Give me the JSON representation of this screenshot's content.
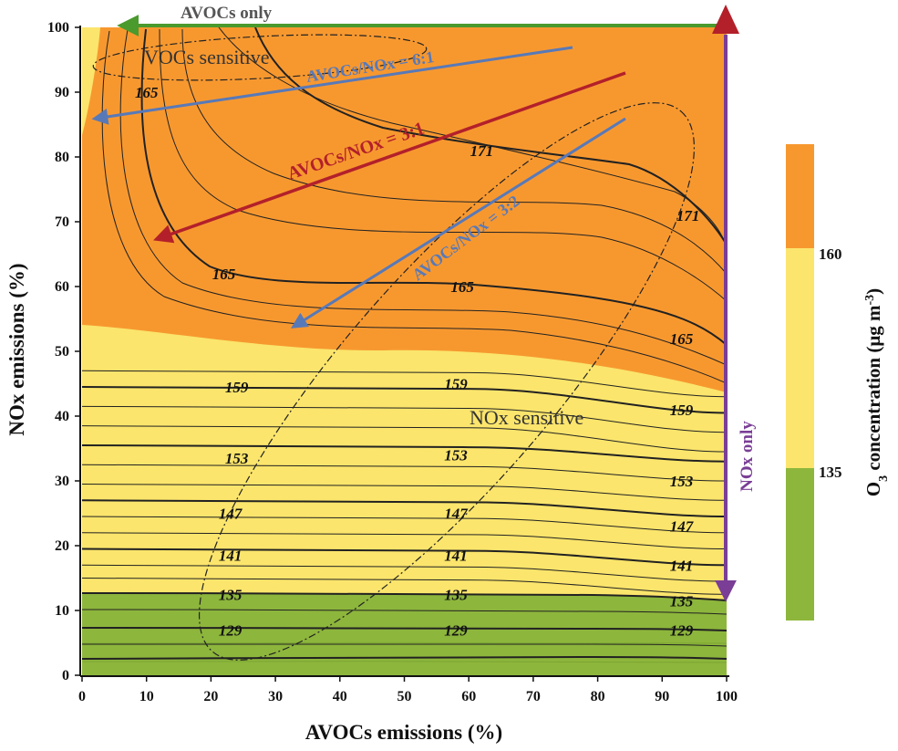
{
  "chart_data": {
    "type": "contour",
    "xlabel": "AVOCs emissions (%)",
    "ylabel": "NOx emissions (%)",
    "xlim": [
      0,
      100
    ],
    "ylim": [
      0,
      100
    ],
    "xticks": [
      "0",
      "10",
      "20",
      "30",
      "40",
      "50",
      "60",
      "70",
      "80",
      "90",
      "100"
    ],
    "yticks": [
      "0",
      "10",
      "20",
      "30",
      "40",
      "50",
      "60",
      "70",
      "80",
      "90",
      "100"
    ],
    "colorbar": {
      "title": "O3 concentration (μg m-3)",
      "ticks": [
        "160",
        "135"
      ],
      "bands": [
        {
          "from": 160,
          "to": 175,
          "color": "#F7982F"
        },
        {
          "from": 135,
          "to": 160,
          "color": "#FBE56C"
        },
        {
          "from": 120,
          "to": 135,
          "color": "#8DB63C"
        }
      ]
    },
    "contour_labels": [
      {
        "value": "171",
        "x": 62,
        "y": 81
      },
      {
        "value": "171",
        "x": 94,
        "y": 71
      },
      {
        "value": "165",
        "x": 10,
        "y": 90
      },
      {
        "value": "165",
        "x": 22,
        "y": 62
      },
      {
        "value": "165",
        "x": 59,
        "y": 60
      },
      {
        "value": "165",
        "x": 93,
        "y": 52
      },
      {
        "value": "159",
        "x": 24,
        "y": 44.5
      },
      {
        "value": "159",
        "x": 58,
        "y": 45
      },
      {
        "value": "159",
        "x": 93,
        "y": 41
      },
      {
        "value": "153",
        "x": 24,
        "y": 33.5
      },
      {
        "value": "153",
        "x": 58,
        "y": 34
      },
      {
        "value": "153",
        "x": 93,
        "y": 30
      },
      {
        "value": "147",
        "x": 23,
        "y": 25
      },
      {
        "value": "147",
        "x": 58,
        "y": 25
      },
      {
        "value": "147",
        "x": 93,
        "y": 23
      },
      {
        "value": "141",
        "x": 23,
        "y": 18.5
      },
      {
        "value": "141",
        "x": 58,
        "y": 18.5
      },
      {
        "value": "141",
        "x": 93,
        "y": 17
      },
      {
        "value": "135",
        "x": 23,
        "y": 12.5
      },
      {
        "value": "135",
        "x": 58,
        "y": 12.5
      },
      {
        "value": "135",
        "x": 93,
        "y": 11.5
      },
      {
        "value": "129",
        "x": 23,
        "y": 7
      },
      {
        "value": "129",
        "x": 58,
        "y": 7
      },
      {
        "value": "129",
        "x": 93,
        "y": 7
      }
    ],
    "annotations": {
      "avocs_only": "AVOCs only",
      "nox_only": "NOx only",
      "vocs_sensitive": "VOCs sensitive",
      "nox_sensitive": "NOx sensitive",
      "ratio_6_1": "AVOCs/NOx = 6:1",
      "ratio_3_1": "AVOCs/NOx = 3:1",
      "ratio_3_2": "AVOCs/NOx = 3:2"
    }
  }
}
